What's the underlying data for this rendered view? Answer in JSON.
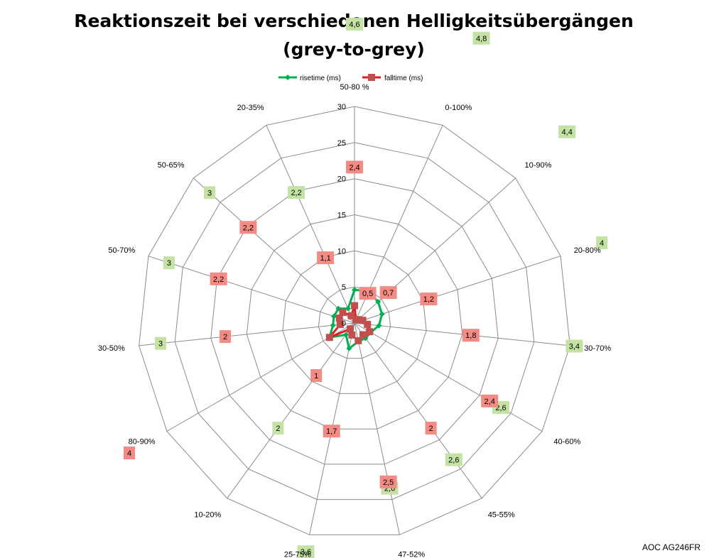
{
  "chart_data": {
    "type": "radar",
    "title_line1": "Reaktionszeit bei verschiedenen Helligkeitsübergängen",
    "title_line2": "(grey-to-grey)",
    "categories": [
      "50-80 %",
      "0-100%",
      "10-90%",
      "20-80%",
      "30-70%",
      "40-60%",
      "45-55%",
      "47-52%",
      "25-75%",
      "10-20%",
      "80-90%",
      "30-50%",
      "50-70%",
      "50-65%",
      "20-35%"
    ],
    "rlim": [
      0,
      30
    ],
    "ticks": [
      0,
      5,
      10,
      15,
      20,
      25,
      30
    ],
    "tick_labels": [
      "0",
      "5",
      "10",
      "15",
      "20",
      "25",
      "30"
    ],
    "grid": true,
    "legend_position": "top",
    "series": [
      {
        "name": "risetime (ms)",
        "color": "#00b050",
        "label_bg": "#c4e2a3",
        "marker": "diamond",
        "values": [
          4.6,
          4.8,
          4.4,
          4,
          3.4,
          2.6,
          2.6,
          2.6,
          3.6,
          2,
          4,
          3,
          3,
          3,
          2.2
        ],
        "labels": [
          "4,6",
          "4,8",
          "4,4",
          "4",
          "3,4",
          "2,6",
          "2,6",
          "2,6",
          "3,6",
          "2",
          "4",
          "3",
          "3",
          "3",
          "2,2"
        ]
      },
      {
        "name": "falltime (ms)",
        "color": "#c0504d",
        "line_color": "#e31b23",
        "label_bg": "#f48a84",
        "marker": "square",
        "values": [
          2.4,
          0.5,
          0.7,
          1.2,
          1.8,
          2.4,
          2,
          2.5,
          1.7,
          1,
          4,
          2,
          2.2,
          2.2,
          1.1
        ],
        "labels": [
          "2,4",
          "0,5",
          "0,7",
          "1,2",
          "1,8",
          "2,4",
          "2",
          "2,5",
          "1,7",
          "1",
          "4",
          "2",
          "2,2",
          "2,2",
          "1,1"
        ]
      }
    ],
    "footnote": "AOC AG246FR"
  }
}
